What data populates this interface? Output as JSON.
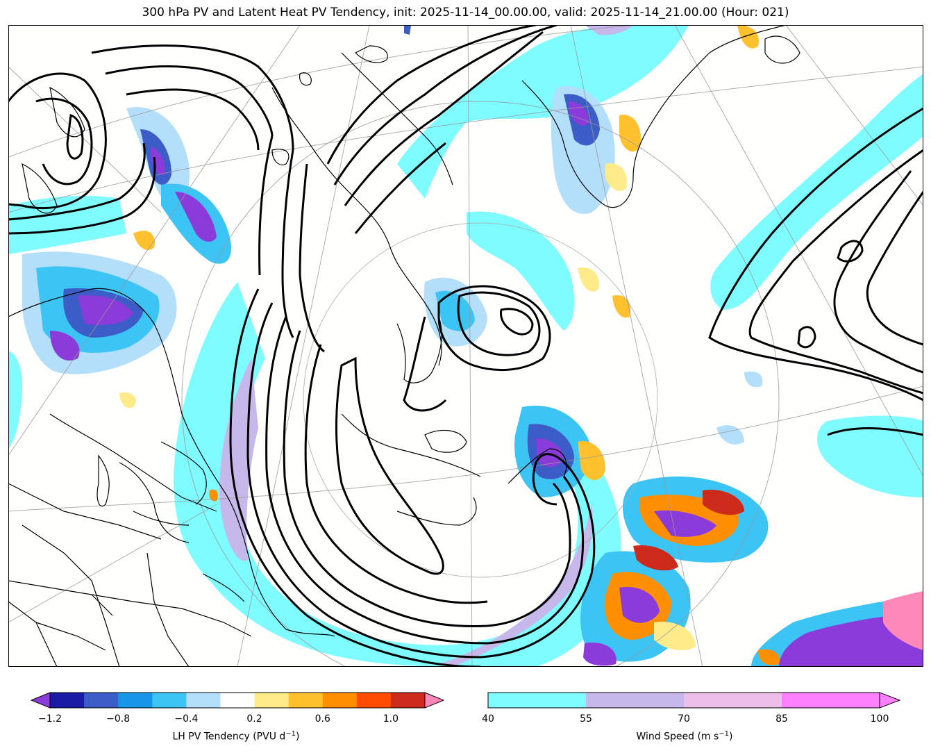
{
  "title": "300 hPa PV and Latent Heat PV Tendency, init: 2025-11-14_00.00.00, valid: 2025-11-14_21.00.00 (Hour: 021)",
  "colorbar_lh": {
    "label": "LH PV Tendency (PVU d",
    "label_exp": "−1",
    "label_close": ")",
    "ticks": [
      "−1.2",
      "−0.8",
      "−0.4",
      "0.2",
      "0.6",
      "1.0"
    ],
    "colors": [
      "#8b3bd9",
      "#1a1ca6",
      "#3c5cc8",
      "#1596e8",
      "#3cc4f5",
      "#b4dffa",
      "#ffffff",
      "#ffeb8a",
      "#ffc12e",
      "#ff8e00",
      "#ff4c00",
      "#cc2a1a",
      "#ff88b8"
    ]
  },
  "colorbar_wind": {
    "label": "Wind Speed (m s",
    "label_exp": "−1",
    "label_close": ")",
    "ticks": [
      "40",
      "55",
      "70",
      "85",
      "100"
    ],
    "colors": [
      "#7ffcff",
      "#c6b8ea",
      "#ebbfe8",
      "#ff80ff"
    ]
  },
  "map": {
    "ocean_color": "#fffffe",
    "wind_40_color": "#7ffcff",
    "wind_55_color": "#c6b8ea"
  }
}
